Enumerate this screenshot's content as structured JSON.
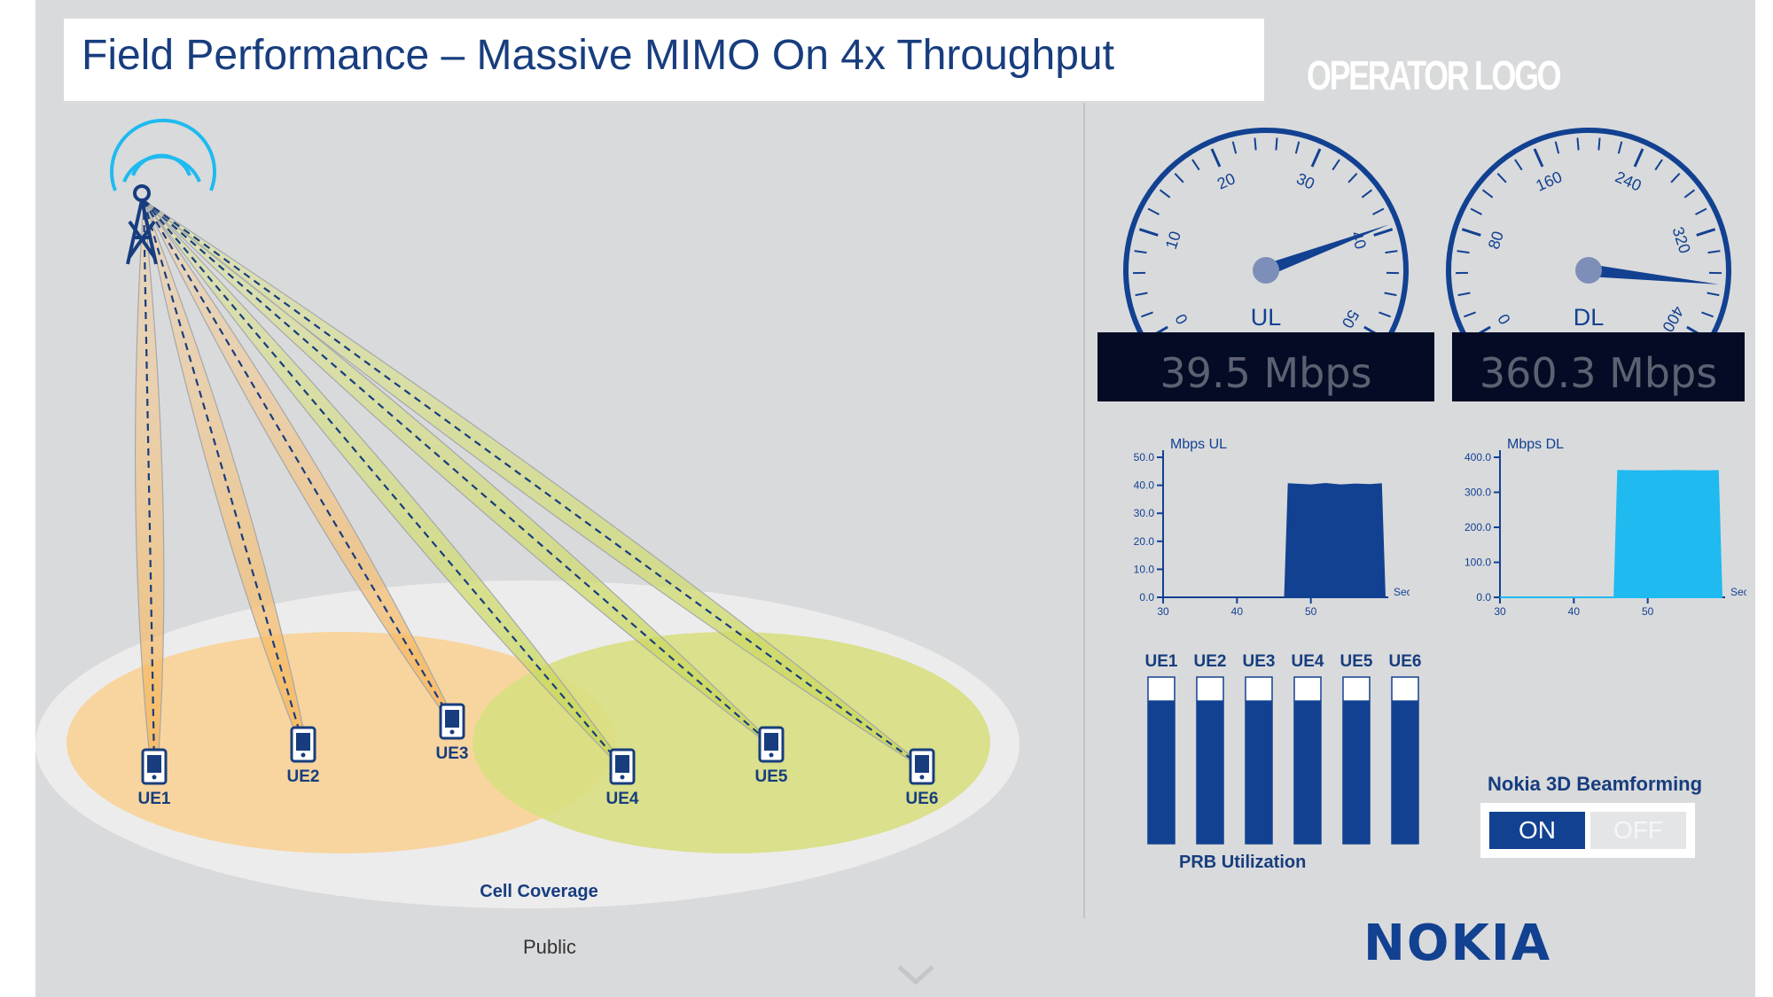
{
  "title": "Field Performance – Massive MIMO On 4x Throughput",
  "operator_logo": "OPERATOR LOGO",
  "brand": "NOKIA",
  "footer": {
    "classification": "Public"
  },
  "diagram": {
    "coverage_label": "Cell Coverage",
    "ues": [
      "UE1",
      "UE2",
      "UE3",
      "UE4",
      "UE5",
      "UE6"
    ]
  },
  "gauges": [
    {
      "label": "UL",
      "ticks": [
        "0",
        "10",
        "20",
        "30",
        "40",
        "50"
      ],
      "min": 0,
      "max": 50,
      "value": 39.5,
      "readout": "39.5 Mbps"
    },
    {
      "label": "DL",
      "ticks": [
        "0",
        "80",
        "160",
        "240",
        "320",
        "400"
      ],
      "min": 0,
      "max": 400,
      "value": 360.3,
      "readout": "360.3 Mbps"
    }
  ],
  "chart_data": [
    {
      "type": "area",
      "title": "",
      "ylabel": "Mbps UL",
      "xlabel": "Sec",
      "x_ticks": [
        "30",
        "40",
        "50"
      ],
      "y_ticks": [
        "0.0",
        "10.0",
        "20.0",
        "30.0",
        "40.0",
        "50.0"
      ],
      "xlim": [
        30,
        60
      ],
      "ylim": [
        0,
        50
      ],
      "series": [
        {
          "x": [
            30,
            46.5,
            47,
            50,
            52,
            54,
            56,
            58,
            59.5,
            60
          ],
          "y": [
            0,
            0,
            40.4,
            40,
            40.5,
            40,
            40.3,
            40.1,
            40.4,
            0
          ]
        }
      ],
      "color": "#124191"
    },
    {
      "type": "area",
      "title": "",
      "ylabel": "Mbps DL",
      "xlabel": "Sec",
      "x_ticks": [
        "30",
        "40",
        "50"
      ],
      "y_ticks": [
        "0.0",
        "100.0",
        "200.0",
        "300.0",
        "400.0"
      ],
      "xlim": [
        30,
        60
      ],
      "ylim": [
        0,
        400
      ],
      "series": [
        {
          "x": [
            30,
            45.5,
            46,
            50,
            54,
            58,
            59.5,
            60
          ],
          "y": [
            0,
            0,
            361,
            360,
            361,
            360,
            361,
            0
          ]
        }
      ],
      "color": "#1fbaf0"
    },
    {
      "type": "bar",
      "title": "",
      "xlabel": "PRB Utilization",
      "categories": [
        "UE1",
        "UE2",
        "UE3",
        "UE4",
        "UE5",
        "UE6"
      ],
      "values": [
        86,
        86,
        86,
        86,
        86,
        86
      ],
      "ylim": [
        0,
        100
      ],
      "color": "#124191"
    }
  ],
  "beamforming": {
    "label": "Nokia 3D Beamforming",
    "on": "ON",
    "off": "OFF",
    "state": "ON"
  },
  "colors": {
    "navy": "#124191",
    "cyan": "#1fbaf0",
    "beam_orange": "#f7c27a",
    "beam_green": "#cfd96a",
    "slide_bg": "#d9dadc"
  }
}
